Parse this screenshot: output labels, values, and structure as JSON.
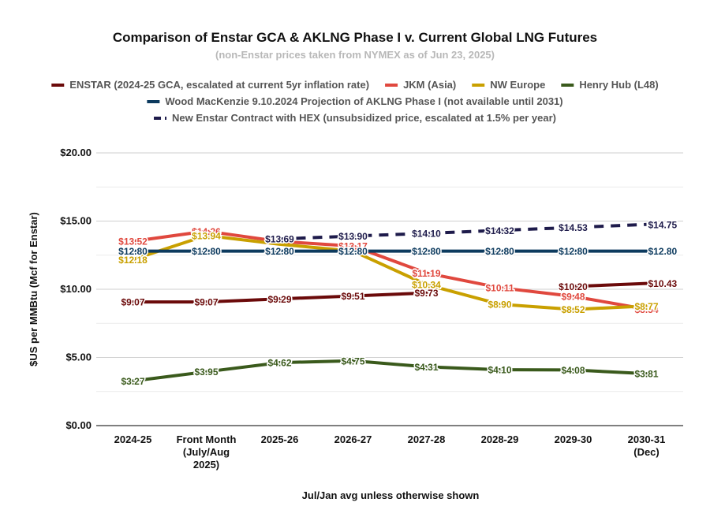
{
  "chart_data": {
    "type": "line",
    "title": "Comparison of Enstar GCA & AKLNG Phase I v. Current Global LNG Futures",
    "subtitle": "(non-Enstar prices taken from NYMEX as of Jun 23, 2025)",
    "xlabel": "Jul/Jan avg unless otherwise shown",
    "ylabel": "$US per MMBtu (Mcf for Enstar)",
    "ylim": [
      0,
      20
    ],
    "y_ticks": [
      "$0.00",
      "$5.00",
      "$10.00",
      "$15.00",
      "$20.00"
    ],
    "grid": true,
    "legend_position": "top",
    "categories": [
      [
        "2024-25"
      ],
      [
        "Front Month",
        "(July/Aug",
        "2025)"
      ],
      [
        "2025-26"
      ],
      [
        "2026-27"
      ],
      [
        "2027-28"
      ],
      [
        "2028-29"
      ],
      [
        "2029-30"
      ],
      [
        "2030-31",
        "(Dec)"
      ]
    ],
    "series": [
      {
        "name": "ENSTAR (2024-25 GCA, escalated at current 5yr inflation rate)",
        "color": "#6b0a0a",
        "dashed": false,
        "values": [
          9.07,
          9.07,
          9.29,
          9.51,
          9.73,
          null,
          10.2,
          10.43
        ],
        "labels": [
          "$9.07",
          "$9.07",
          "$9.29",
          "$9.51",
          "$9.73",
          "",
          "$10.20",
          "$10.43"
        ],
        "label_anchor": [
          "middle",
          "middle",
          "middle",
          "middle",
          "middle",
          "middle",
          "middle",
          "start"
        ]
      },
      {
        "name": "JKM (Asia)",
        "color": "#e0483e",
        "dashed": false,
        "values": [
          13.52,
          14.26,
          13.5,
          13.17,
          11.19,
          10.11,
          9.48,
          8.54
        ],
        "labels": [
          "$13.52",
          "$14.26",
          "",
          "$13.17",
          "$11.19",
          "$10.11",
          "$9.48",
          "$8.54"
        ],
        "label_anchor": [
          "middle",
          "middle",
          "middle",
          "middle",
          "middle",
          "middle",
          "middle",
          "middle"
        ]
      },
      {
        "name": "NW Europe",
        "color": "#c9a000",
        "dashed": false,
        "values": [
          12.18,
          13.94,
          13.3,
          12.8,
          10.34,
          8.9,
          8.52,
          8.77
        ],
        "labels": [
          "$12.18",
          "$13.94",
          "",
          "",
          "$10.34",
          "$8.90",
          "$8.52",
          "$8.77"
        ],
        "label_anchor": [
          "middle",
          "middle",
          "middle",
          "middle",
          "middle",
          "middle",
          "middle",
          "middle"
        ]
      },
      {
        "name": "Henry Hub (L48)",
        "color": "#3a5a1c",
        "dashed": false,
        "values": [
          3.27,
          3.95,
          4.62,
          4.75,
          4.31,
          4.1,
          4.08,
          3.81
        ],
        "labels": [
          "$3.27",
          "$3.95",
          "$4.62",
          "$4.75",
          "$4.31",
          "$4.10",
          "$4.08",
          "$3.81"
        ],
        "label_anchor": [
          "middle",
          "middle",
          "middle",
          "middle",
          "middle",
          "middle",
          "middle",
          "middle"
        ]
      },
      {
        "name": "Wood MacKenzie 9.10.2024 Projection of AKLNG Phase I (not available until 2031)",
        "color": "#0c3a5e",
        "dashed": false,
        "values": [
          12.8,
          12.8,
          12.8,
          12.8,
          12.8,
          12.8,
          12.8,
          12.8
        ],
        "labels": [
          "$12.80",
          "$12.80",
          "$12.80",
          "$12.80",
          "$12.80",
          "$12.80",
          "$12.80",
          "$12.80"
        ],
        "label_anchor": [
          "middle",
          "middle",
          "middle",
          "middle",
          "middle",
          "middle",
          "middle",
          "start"
        ]
      },
      {
        "name": "New Enstar Contract with HEX (unsubsidized price, escalated at 1.5% per year)",
        "color": "#1e1b4b",
        "dashed": true,
        "values": [
          null,
          null,
          13.69,
          13.9,
          14.1,
          14.32,
          14.53,
          14.75
        ],
        "labels": [
          "",
          "",
          "$13.69",
          "$13.90",
          "$14.10",
          "$14.32",
          "$14.53",
          "$14.75"
        ],
        "label_anchor": [
          "middle",
          "middle",
          "middle",
          "middle",
          "middle",
          "middle",
          "middle",
          "start"
        ]
      }
    ]
  }
}
